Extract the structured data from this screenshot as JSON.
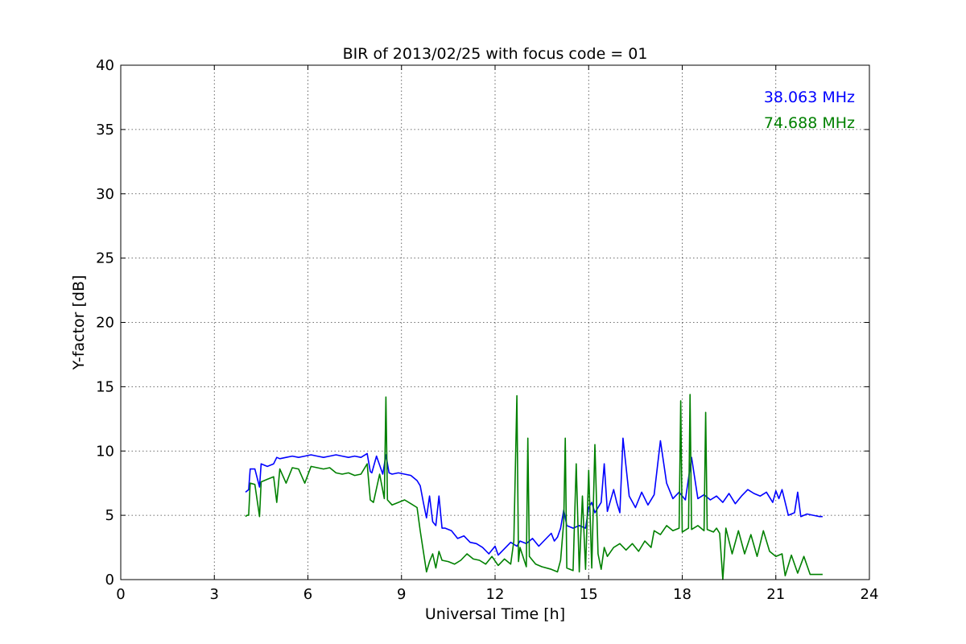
{
  "chart_data": {
    "type": "line",
    "title": "BIR of 2013/02/25 with focus code = 01",
    "xlabel": "Universal Time [h]",
    "ylabel": "Y-factor [dB]",
    "xlim": [
      0,
      24
    ],
    "ylim": [
      0,
      40
    ],
    "xticks": [
      0,
      3,
      6,
      9,
      12,
      15,
      18,
      21,
      24
    ],
    "yticks": [
      0,
      5,
      10,
      15,
      20,
      25,
      30,
      35,
      40
    ],
    "grid": true,
    "legend_placement": "top-right",
    "series": [
      {
        "name": "38.063 MHz",
        "color": "#0000ff",
        "x": [
          4.0,
          4.1,
          4.15,
          4.3,
          4.45,
          4.5,
          4.7,
          4.9,
          5.0,
          5.1,
          5.3,
          5.5,
          5.7,
          5.9,
          6.1,
          6.3,
          6.5,
          6.7,
          6.9,
          7.1,
          7.3,
          7.5,
          7.7,
          7.9,
          8.0,
          8.05,
          8.2,
          8.4,
          8.5,
          8.6,
          8.7,
          8.9,
          9.1,
          9.3,
          9.5,
          9.6,
          9.7,
          9.8,
          9.9,
          10.0,
          10.1,
          10.2,
          10.3,
          10.4,
          10.6,
          10.8,
          11.0,
          11.2,
          11.4,
          11.6,
          11.8,
          12.0,
          12.1,
          12.3,
          12.5,
          12.7,
          12.8,
          13.0,
          13.2,
          13.4,
          13.6,
          13.8,
          13.9,
          14.0,
          14.1,
          14.2,
          14.3,
          14.5,
          14.7,
          14.9,
          15.0,
          15.1,
          15.2,
          15.4,
          15.5,
          15.6,
          15.8,
          15.9,
          16.0,
          16.1,
          16.3,
          16.5,
          16.7,
          16.9,
          17.1,
          17.3,
          17.5,
          17.7,
          17.9,
          18.1,
          18.3,
          18.5,
          18.7,
          18.9,
          19.1,
          19.3,
          19.5,
          19.7,
          19.9,
          20.1,
          20.3,
          20.5,
          20.7,
          20.9,
          21.0,
          21.1,
          21.2,
          21.4,
          21.6,
          21.7,
          21.8,
          22.0,
          22.2,
          22.4,
          22.5
        ],
        "y": [
          6.8,
          7.0,
          8.6,
          8.6,
          7.2,
          9.0,
          8.8,
          9.0,
          9.5,
          9.4,
          9.5,
          9.6,
          9.5,
          9.6,
          9.7,
          9.6,
          9.5,
          9.6,
          9.7,
          9.6,
          9.5,
          9.6,
          9.5,
          9.8,
          8.4,
          8.3,
          9.6,
          8.2,
          9.7,
          8.3,
          8.2,
          8.3,
          8.2,
          8.1,
          7.7,
          7.3,
          6.0,
          4.8,
          6.5,
          4.5,
          4.2,
          6.5,
          4.0,
          4.0,
          3.8,
          3.2,
          3.4,
          2.9,
          2.8,
          2.5,
          2.0,
          2.6,
          1.9,
          2.4,
          2.9,
          2.6,
          3.0,
          2.8,
          3.2,
          2.6,
          3.1,
          3.6,
          3.0,
          3.3,
          4.0,
          5.4,
          4.2,
          4.0,
          4.2,
          4.0,
          5.6,
          6.0,
          5.2,
          6.0,
          9.0,
          5.3,
          7.0,
          6.0,
          5.2,
          11.0,
          6.5,
          5.6,
          6.8,
          5.8,
          6.6,
          10.8,
          7.5,
          6.3,
          6.8,
          6.2,
          9.5,
          6.3,
          6.6,
          6.2,
          6.5,
          6.0,
          6.7,
          5.9,
          6.5,
          7.0,
          6.7,
          6.5,
          6.8,
          6.0,
          6.9,
          6.3,
          7.0,
          5.0,
          5.2,
          6.8,
          4.9,
          5.1,
          5.0,
          4.9,
          4.9
        ]
      },
      {
        "name": "74.688 MHz",
        "color": "#008000",
        "x": [
          4.0,
          4.05,
          4.1,
          4.15,
          4.3,
          4.45,
          4.5,
          4.7,
          4.9,
          5.0,
          5.1,
          5.3,
          5.5,
          5.7,
          5.9,
          6.1,
          6.3,
          6.5,
          6.7,
          6.9,
          7.1,
          7.3,
          7.5,
          7.7,
          7.9,
          8.0,
          8.1,
          8.3,
          8.45,
          8.5,
          8.55,
          8.7,
          8.9,
          9.1,
          9.3,
          9.5,
          9.6,
          9.7,
          9.8,
          9.9,
          10.0,
          10.1,
          10.2,
          10.3,
          10.5,
          10.7,
          10.9,
          11.1,
          11.3,
          11.5,
          11.7,
          11.9,
          12.1,
          12.3,
          12.5,
          12.6,
          12.7,
          12.75,
          12.8,
          13.0,
          13.05,
          13.1,
          13.3,
          13.5,
          13.8,
          14.0,
          14.1,
          14.2,
          14.25,
          14.3,
          14.5,
          14.6,
          14.7,
          14.8,
          14.9,
          15.0,
          15.1,
          15.2,
          15.3,
          15.4,
          15.5,
          15.6,
          15.8,
          16.0,
          16.2,
          16.4,
          16.6,
          16.8,
          17.0,
          17.1,
          17.3,
          17.5,
          17.7,
          17.9,
          17.95,
          18.0,
          18.2,
          18.25,
          18.3,
          18.5,
          18.7,
          18.75,
          18.8,
          19.0,
          19.1,
          19.2,
          19.3,
          19.35,
          19.4,
          19.6,
          19.8,
          20.0,
          20.2,
          20.4,
          20.6,
          20.8,
          21.0,
          21.2,
          21.3,
          21.5,
          21.7,
          21.9,
          22.1,
          22.3,
          22.5
        ],
        "y": [
          4.9,
          5.0,
          5.0,
          7.5,
          7.4,
          4.9,
          7.6,
          7.8,
          8.0,
          6.0,
          8.6,
          7.5,
          8.7,
          8.6,
          7.5,
          8.8,
          8.7,
          8.6,
          8.7,
          8.3,
          8.2,
          8.3,
          8.1,
          8.2,
          9.0,
          6.2,
          6.0,
          8.2,
          6.3,
          14.2,
          6.2,
          5.8,
          6.0,
          6.2,
          5.9,
          5.6,
          3.8,
          2.2,
          0.6,
          1.4,
          2.0,
          0.9,
          2.2,
          1.5,
          1.4,
          1.2,
          1.5,
          2.0,
          1.6,
          1.5,
          1.2,
          1.8,
          1.1,
          1.6,
          1.2,
          3.0,
          14.3,
          1.4,
          2.5,
          1.0,
          11.0,
          1.8,
          1.2,
          1.0,
          0.8,
          0.6,
          1.5,
          4.5,
          11.0,
          0.9,
          0.7,
          9.0,
          0.6,
          6.5,
          0.8,
          8.5,
          0.9,
          10.5,
          2.0,
          0.8,
          2.5,
          1.8,
          2.5,
          2.8,
          2.3,
          2.8,
          2.2,
          3.0,
          2.5,
          3.8,
          3.5,
          4.2,
          3.8,
          4.0,
          13.9,
          3.7,
          4.0,
          14.4,
          3.9,
          4.2,
          3.8,
          13.0,
          3.9,
          3.7,
          4.0,
          3.6,
          0.0,
          1.8,
          4.0,
          2.0,
          3.8,
          2.0,
          3.5,
          1.8,
          3.8,
          2.2,
          1.8,
          2.0,
          0.3,
          1.9,
          0.5,
          1.8,
          0.4,
          0.4,
          0.4
        ]
      }
    ],
    "legend": [
      {
        "label": "38.063 MHz",
        "color": "#0000ff"
      },
      {
        "label": "74.688 MHz",
        "color": "#008000"
      }
    ]
  }
}
